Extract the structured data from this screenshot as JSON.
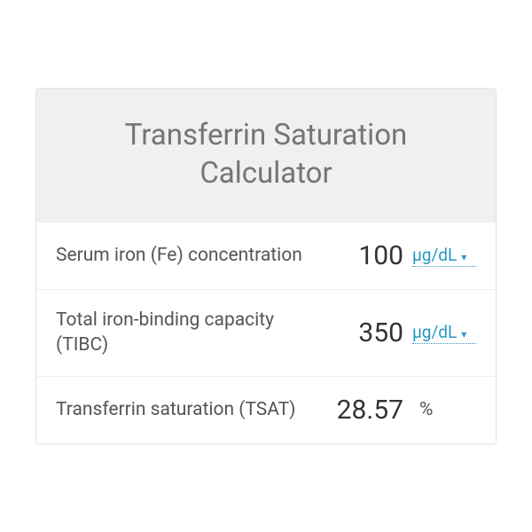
{
  "card": {
    "title": "Transferrin Saturation Calculator",
    "background_header": "#f0f0f0",
    "border_color": "#e5e5e5",
    "title_color": "#757575",
    "label_color": "#555555",
    "value_color": "#333333",
    "accent_color": "#2795c4"
  },
  "rows": [
    {
      "label": "Serum iron (Fe) concentration",
      "value": "100",
      "unit": "μg/dL",
      "unit_selectable": true
    },
    {
      "label": "Total iron-binding capacity (TIBC)",
      "value": "350",
      "unit": "μg/dL",
      "unit_selectable": true
    },
    {
      "label": "Transferrin saturation (TSAT)",
      "value": "28.57",
      "unit": "%",
      "unit_selectable": false
    }
  ],
  "caret": "▾"
}
